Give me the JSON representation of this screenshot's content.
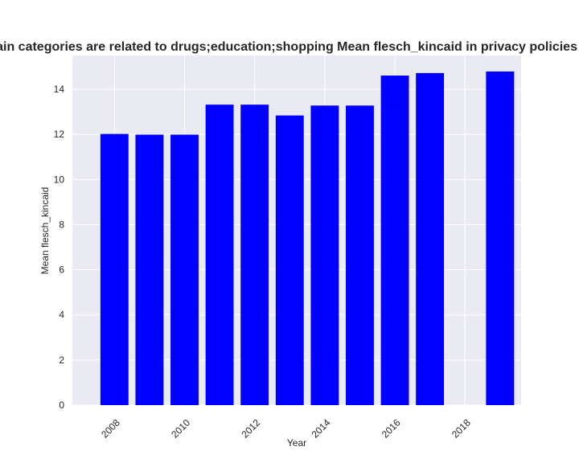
{
  "chart_data": {
    "type": "bar",
    "title": "Domain categories are related to drugs;education;shopping Mean flesch_kincaid in privacy policies by year",
    "xlabel": "Year",
    "ylabel": "Mean flesch_kincaid",
    "x": [
      2008,
      2009,
      2010,
      2011,
      2012,
      2013,
      2014,
      2015,
      2016,
      2017,
      2019
    ],
    "values": [
      12.02,
      11.99,
      11.99,
      13.32,
      13.32,
      12.84,
      13.28,
      13.28,
      14.61,
      14.72,
      14.79
    ],
    "xlim": [
      2006.8,
      2019.6
    ],
    "ylim": [
      0,
      15.5
    ],
    "xticks": [
      2008,
      2010,
      2012,
      2014,
      2016,
      2018
    ],
    "yticks": [
      0,
      2,
      4,
      6,
      8,
      10,
      12,
      14
    ],
    "bar_color": "#0000ff",
    "background": "#eaeaf2",
    "grid": true
  }
}
